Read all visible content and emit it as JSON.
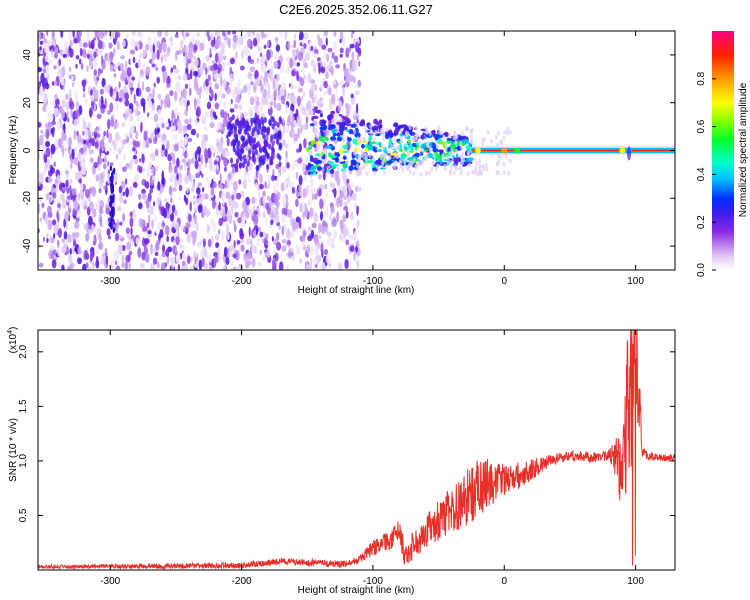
{
  "title": "C2E6.2025.352.06.11.G27",
  "chart_data": [
    {
      "type": "heatmap",
      "xlabel": "Height of straight line (km)",
      "ylabel": "Frequency (Hz)",
      "xlim": [
        -355,
        130
      ],
      "ylim": [
        -50,
        50
      ],
      "xticks": [
        -300,
        -200,
        -100,
        0,
        100
      ],
      "xtick_labels": [
        "-300",
        "-200",
        "-100",
        "0",
        "100"
      ],
      "yticks": [
        -40,
        -20,
        0,
        20,
        40
      ],
      "ytick_labels": [
        "-40",
        "-20",
        "0",
        "20",
        "40"
      ],
      "colorbar": {
        "label": "Normalized spectral amplitude",
        "range": [
          0,
          1
        ],
        "ticks": [
          0.0,
          0.2,
          0.4,
          0.6,
          0.8
        ],
        "tick_labels": [
          "0.0",
          "0.2",
          "0.4",
          "0.6",
          "0.8"
        ]
      },
      "features": {
        "noise_region_x": [
          -355,
          -110
        ],
        "scattered_region_x": [
          -110,
          -25
        ],
        "carrier_line_x": [
          -25,
          130
        ],
        "carrier_frequency": 0
      }
    },
    {
      "type": "line",
      "xlabel": "Height of straight line (km)",
      "ylabel": "SNR (10 * v/v)",
      "y_multiplier_label": "(x10",
      "y_multiplier_exp": "4",
      "xlim": [
        -355,
        130
      ],
      "ylim": [
        0,
        22000
      ],
      "xticks": [
        -300,
        -200,
        -100,
        0,
        100
      ],
      "xtick_labels": [
        "-300",
        "-200",
        "-100",
        "0",
        "100"
      ],
      "yticks": [
        5000,
        10000,
        15000,
        20000
      ],
      "ytick_labels": [
        "0.5",
        "1.0",
        "1.5",
        "2.0"
      ],
      "color": "#e8302a",
      "envelope": {
        "x": [
          -355,
          -200,
          -170,
          -120,
          -110,
          -100,
          -90,
          -80,
          -75,
          -70,
          -60,
          -50,
          -40,
          -30,
          -20,
          -10,
          0,
          10,
          20,
          30,
          40,
          50,
          60,
          70,
          80,
          85,
          90,
          92,
          95,
          98,
          100,
          105,
          110,
          120,
          130
        ],
        "y": [
          300,
          400,
          800,
          500,
          1000,
          2000,
          2500,
          3500,
          1000,
          2200,
          3500,
          4500,
          5500,
          6500,
          7500,
          8000,
          8200,
          8600,
          9200,
          9700,
          10200,
          10500,
          10400,
          10300,
          10600,
          10200,
          10400,
          13000,
          16000,
          18000,
          22000,
          10800,
          10400,
          10300,
          10300
        ]
      },
      "noise_amplitude": {
        "x": [
          -355,
          -110,
          -100,
          -60,
          -40,
          -20,
          0,
          40,
          80,
          85,
          90,
          95,
          100,
          105,
          130
        ],
        "y": [
          150,
          350,
          700,
          1500,
          2200,
          2800,
          1500,
          500,
          500,
          2000,
          5500,
          9000,
          7000,
          400,
          300
        ]
      }
    }
  ]
}
